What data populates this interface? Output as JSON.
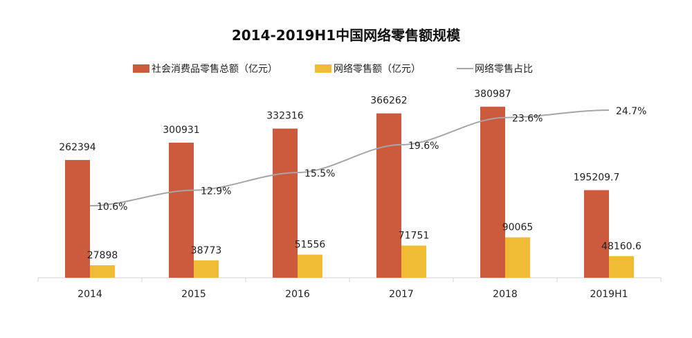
{
  "chart_data": {
    "type": "bar+line",
    "title": "2014-2019H1中国网络零售额规模",
    "categories": [
      "2014",
      "2015",
      "2016",
      "2017",
      "2018",
      "2019H1"
    ],
    "series": [
      {
        "name": "社会消费品零售总额（亿元）",
        "type": "bar",
        "color": "#cc5a3c",
        "values": [
          262394,
          300931,
          332316,
          366262,
          380987,
          195209.7
        ],
        "labels": [
          "262394",
          "300931",
          "332316",
          "366262",
          "380987",
          "195209.7"
        ]
      },
      {
        "name": "网络零售额（亿元）",
        "type": "bar",
        "color": "#f0bc35",
        "values": [
          27898,
          38773,
          51556,
          71751,
          90065,
          48160.6
        ],
        "labels": [
          "27898",
          "38773",
          "51556",
          "71751",
          "90065",
          "48160.6"
        ]
      },
      {
        "name": "网络零售占比",
        "type": "line",
        "color": "#a6a6a6",
        "axis": "secondary",
        "values": [
          10.6,
          12.9,
          15.5,
          19.6,
          23.6,
          24.7
        ],
        "labels": [
          "10.6%",
          "12.9%",
          "15.5%",
          "19.6%",
          "23.6%",
          "24.7%"
        ]
      }
    ],
    "legend": "top",
    "grid": false,
    "y_axis_visible": false
  }
}
